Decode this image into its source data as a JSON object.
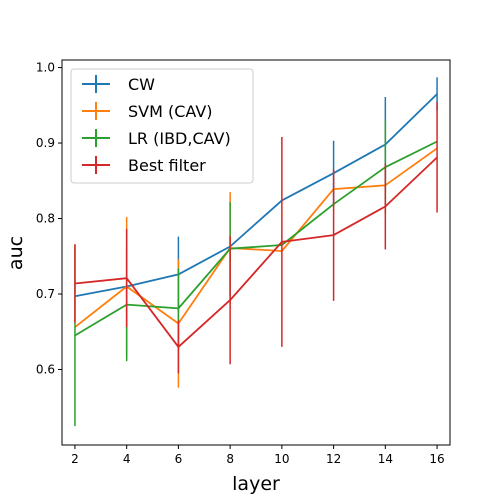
{
  "chart_data": {
    "type": "line",
    "title": "",
    "xlabel": "layer",
    "ylabel": "auc",
    "x": [
      2,
      4,
      6,
      8,
      10,
      12,
      14,
      16
    ],
    "x_ticks": [
      "2",
      "4",
      "6",
      "8",
      "10",
      "12",
      "14",
      "16"
    ],
    "y_ticks": [
      "0.6",
      "0.7",
      "0.8",
      "0.9",
      "1.0"
    ],
    "xlim": [
      1.5,
      16.5
    ],
    "ylim": [
      0.5,
      1.01
    ],
    "grid": false,
    "legend_position": "top-left",
    "error_bars": true,
    "series": [
      {
        "name": "CW",
        "color": "#1f77b4",
        "values": [
          0.697,
          0.71,
          0.726,
          0.763,
          0.824,
          0.86,
          0.898,
          0.965
        ],
        "err": [
          0.0,
          0.0,
          0.05,
          0.0,
          0.0,
          0.043,
          0.063,
          0.022
        ]
      },
      {
        "name": "SVM (CAV)",
        "color": "#ff7f0e",
        "values": [
          0.656,
          0.71,
          0.661,
          0.761,
          0.757,
          0.839,
          0.844,
          0.893
        ],
        "err": [
          0.0,
          0.092,
          0.085,
          0.074,
          0.0,
          0.0,
          0.0,
          0.0
        ]
      },
      {
        "name": "LR (IBD,CAV)",
        "color": "#2ca02c",
        "values": [
          0.645,
          0.686,
          0.681,
          0.76,
          0.765,
          0.819,
          0.868,
          0.902
        ],
        "err": [
          0.12,
          0.075,
          0.053,
          0.062,
          0.0,
          0.0,
          0.062,
          0.0
        ]
      },
      {
        "name": "Best filter",
        "color": "#d62728",
        "values": [
          0.714,
          0.721,
          0.63,
          0.692,
          0.769,
          0.778,
          0.816,
          0.881
        ],
        "err": [
          0.052,
          0.065,
          0.035,
          0.085,
          0.139,
          0.087,
          0.057,
          0.073
        ]
      }
    ]
  }
}
